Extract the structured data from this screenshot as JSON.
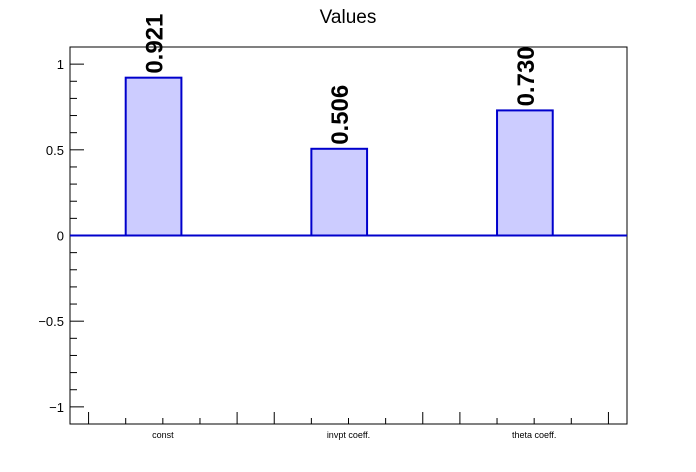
{
  "chart_data": {
    "type": "bar",
    "title": "Values",
    "categories": [
      "const",
      "invpt coeff.",
      "theta coeff."
    ],
    "values": [
      0.921,
      0.506,
      0.73
    ],
    "value_labels": [
      "0.921",
      "0.506",
      "0.730"
    ],
    "ylim": [
      -1.1,
      1.1
    ],
    "yticks": [
      -1,
      -0.5,
      0,
      0.5,
      1
    ],
    "ytick_labels": [
      "−1",
      "−0.5",
      "0",
      "0.5",
      "1"
    ],
    "xlabel": "",
    "ylabel": "",
    "grid": false,
    "colors": {
      "bar_fill": "#ccccff",
      "bar_stroke": "#0000cc",
      "axis": "#000000"
    }
  }
}
